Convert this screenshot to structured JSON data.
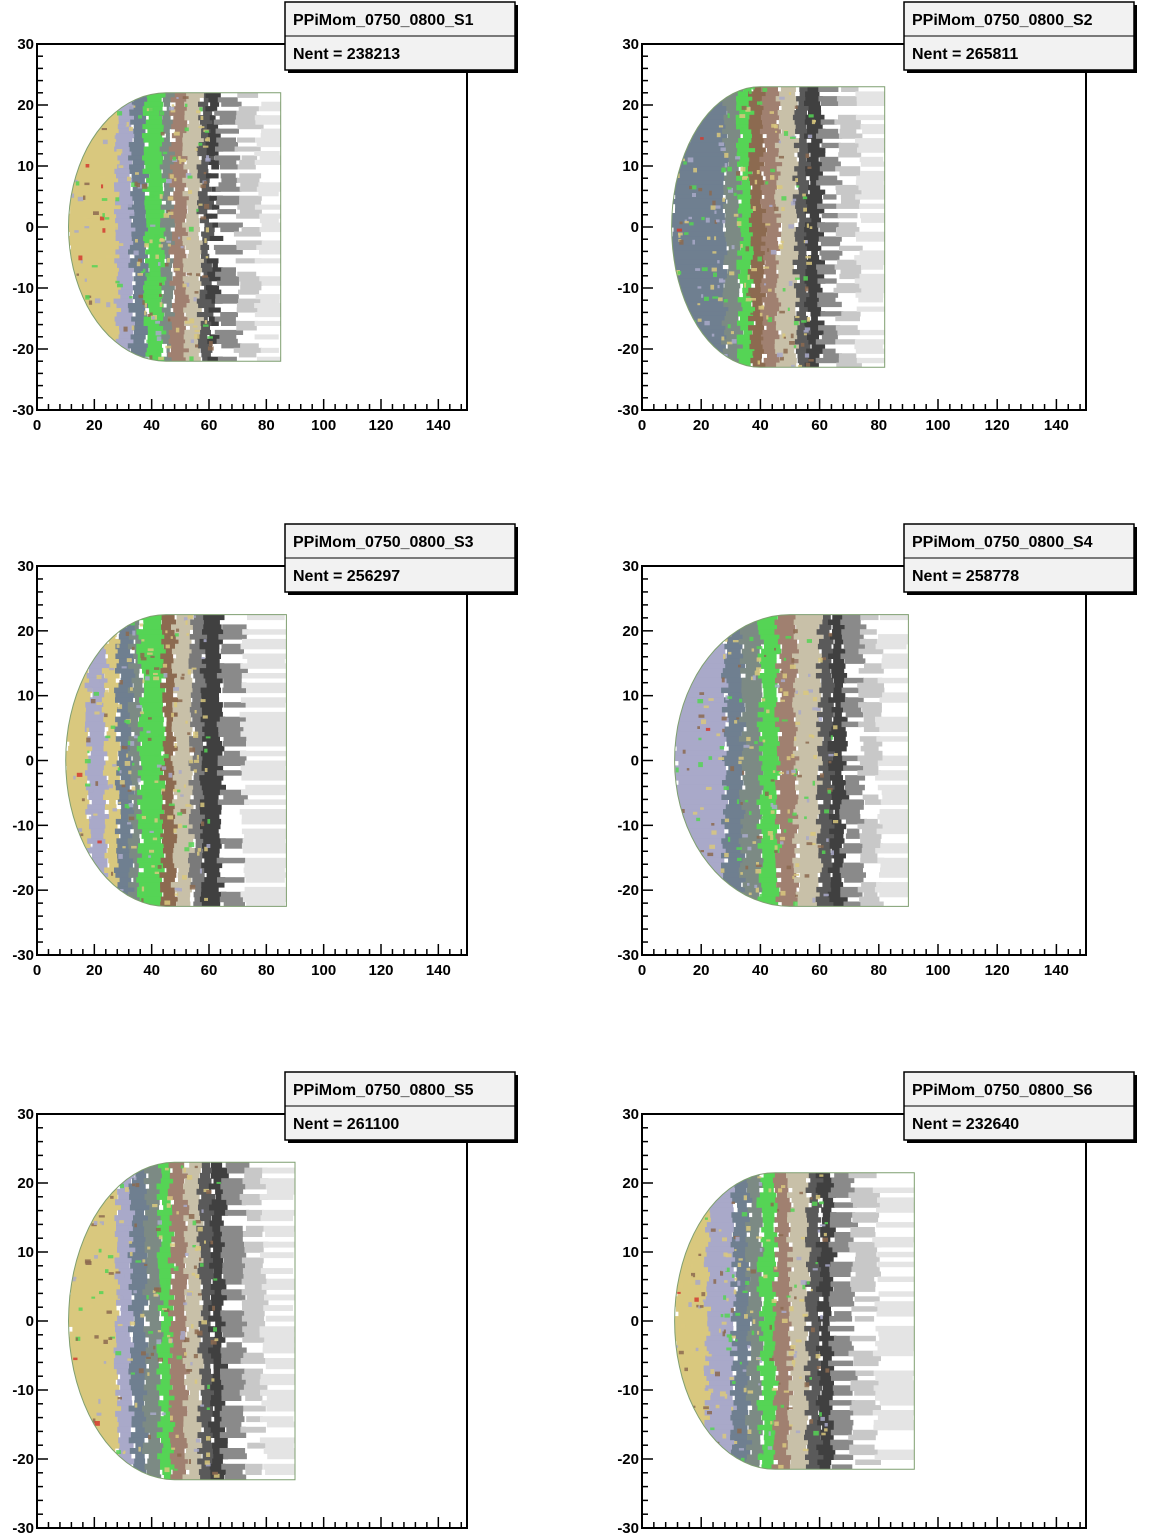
{
  "chart_data": [
    {
      "type": "heatmap",
      "title": "PPiMom_0750_0800_S1",
      "stats": "Nent = 238213",
      "xlim": [
        0,
        150
      ],
      "ylim": [
        -30,
        30
      ],
      "x_ticks": [
        "0",
        "20",
        "40",
        "60",
        "80",
        "100",
        "120",
        "140"
      ],
      "y_ticks": [
        "-30",
        "-20",
        "-10",
        "0",
        "10",
        "20",
        "30"
      ],
      "region": {
        "x_min": 11,
        "x_top": 45,
        "x_solid": 60,
        "x_tail": 85,
        "y_half": 22
      },
      "bands": [
        {
          "x0": 11,
          "x1": 30,
          "color": "#d9c87e"
        },
        {
          "x0": 28,
          "x1": 33,
          "color": "#a9a9c9"
        },
        {
          "x0": 33,
          "x1": 38,
          "color": "#6f7f90"
        },
        {
          "x0": 38,
          "x1": 44,
          "color": "#55d455"
        },
        {
          "x0": 44,
          "x1": 47,
          "color": "#7c8a84"
        },
        {
          "x0": 47,
          "x1": 52,
          "color": "#a08070"
        },
        {
          "x0": 52,
          "x1": 57,
          "color": "#c8c0a8"
        },
        {
          "x0": 57,
          "x1": 60,
          "color": "#5a5a5a"
        },
        {
          "x0": 60,
          "x1": 63,
          "color": "#404040"
        },
        {
          "x0": 63,
          "x1": 70,
          "color": "#8a8a8a"
        },
        {
          "x0": 70,
          "x1": 77,
          "color": "#c8c8c8"
        },
        {
          "x0": 77,
          "x1": 85,
          "color": "#e4e4e4"
        }
      ]
    },
    {
      "type": "heatmap",
      "title": "PPiMom_0750_0800_S2",
      "stats": "Nent = 265811",
      "xlim": [
        0,
        150
      ],
      "ylim": [
        -30,
        30
      ],
      "x_ticks": [
        "0",
        "20",
        "40",
        "60",
        "80",
        "100",
        "120",
        "140"
      ],
      "y_ticks": [
        "-30",
        "-20",
        "-10",
        "0",
        "10",
        "20",
        "30"
      ],
      "region": {
        "x_min": 10,
        "x_top": 40,
        "x_solid": 58,
        "x_tail": 82,
        "y_half": 23
      },
      "bands": [
        {
          "x0": 10,
          "x1": 28,
          "color": "#6f7f90"
        },
        {
          "x0": 28,
          "x1": 33,
          "color": "#7c8a84"
        },
        {
          "x0": 33,
          "x1": 37,
          "color": "#55d455"
        },
        {
          "x0": 37,
          "x1": 41,
          "color": "#8c6a50"
        },
        {
          "x0": 41,
          "x1": 46,
          "color": "#a08070"
        },
        {
          "x0": 46,
          "x1": 52,
          "color": "#c8c0a8"
        },
        {
          "x0": 52,
          "x1": 56,
          "color": "#5a5a5a"
        },
        {
          "x0": 56,
          "x1": 60,
          "color": "#404040"
        },
        {
          "x0": 60,
          "x1": 66,
          "color": "#8a8a8a"
        },
        {
          "x0": 66,
          "x1": 73,
          "color": "#c8c8c8"
        },
        {
          "x0": 73,
          "x1": 82,
          "color": "#e4e4e4"
        }
      ]
    },
    {
      "type": "heatmap",
      "title": "PPiMom_0750_0800_S3",
      "stats": "Nent = 256297",
      "xlim": [
        0,
        150
      ],
      "ylim": [
        -30,
        30
      ],
      "x_ticks": [
        "0",
        "20",
        "40",
        "60",
        "80",
        "100",
        "120",
        "140"
      ],
      "y_ticks": [
        "-30",
        "-20",
        "-10",
        "0",
        "10",
        "20",
        "30"
      ],
      "region": {
        "x_min": 10,
        "x_top": 45,
        "x_solid": 60,
        "x_tail": 87,
        "y_half": 22.5
      },
      "bands": [
        {
          "x0": 10,
          "x1": 18,
          "color": "#d9c87e"
        },
        {
          "x0": 18,
          "x1": 24,
          "color": "#a9a9c9"
        },
        {
          "x0": 24,
          "x1": 28,
          "color": "#d9c87e"
        },
        {
          "x0": 28,
          "x1": 33,
          "color": "#6f7f90"
        },
        {
          "x0": 33,
          "x1": 36,
          "color": "#7c8a84"
        },
        {
          "x0": 36,
          "x1": 44,
          "color": "#55d455"
        },
        {
          "x0": 44,
          "x1": 48,
          "color": "#8c6a50"
        },
        {
          "x0": 48,
          "x1": 54,
          "color": "#c8c0a8"
        },
        {
          "x0": 54,
          "x1": 58,
          "color": "#7a7a7a"
        },
        {
          "x0": 58,
          "x1": 64,
          "color": "#404040"
        },
        {
          "x0": 64,
          "x1": 72,
          "color": "#8a8a8a"
        },
        {
          "x0": 72,
          "x1": 87,
          "color": "#e4e4e4"
        }
      ]
    },
    {
      "type": "heatmap",
      "title": "PPiMom_0750_0800_S4",
      "stats": "Nent = 258778",
      "xlim": [
        0,
        150
      ],
      "ylim": [
        -30,
        30
      ],
      "x_ticks": [
        "0",
        "20",
        "40",
        "60",
        "80",
        "100",
        "120",
        "140"
      ],
      "y_ticks": [
        "-30",
        "-20",
        "-10",
        "0",
        "10",
        "20",
        "30"
      ],
      "region": {
        "x_min": 11,
        "x_top": 50,
        "x_solid": 65,
        "x_tail": 90,
        "y_half": 22.5
      },
      "bands": [
        {
          "x0": 11,
          "x1": 28,
          "color": "#a9a9c9"
        },
        {
          "x0": 28,
          "x1": 34,
          "color": "#6f7f90"
        },
        {
          "x0": 34,
          "x1": 40,
          "color": "#7c8a84"
        },
        {
          "x0": 40,
          "x1": 46,
          "color": "#55d455"
        },
        {
          "x0": 46,
          "x1": 52,
          "color": "#a08070"
        },
        {
          "x0": 52,
          "x1": 60,
          "color": "#c8c0a8"
        },
        {
          "x0": 60,
          "x1": 64,
          "color": "#5a5a5a"
        },
        {
          "x0": 64,
          "x1": 68,
          "color": "#404040"
        },
        {
          "x0": 68,
          "x1": 74,
          "color": "#8a8a8a"
        },
        {
          "x0": 74,
          "x1": 80,
          "color": "#c8c8c8"
        },
        {
          "x0": 80,
          "x1": 90,
          "color": "#e4e4e4"
        }
      ]
    },
    {
      "type": "heatmap",
      "title": "PPiMom_0750_0800_S5",
      "stats": "Nent = 261100",
      "xlim": [
        0,
        150
      ],
      "ylim": [
        -30,
        30
      ],
      "x_ticks": [
        "0",
        "20",
        "40",
        "60",
        "80",
        "100",
        "120",
        "140"
      ],
      "y_ticks": [
        "-30",
        "-20",
        "-10",
        "0",
        "10",
        "20",
        "30"
      ],
      "region": {
        "x_min": 11,
        "x_top": 48,
        "x_solid": 63,
        "x_tail": 90,
        "y_half": 23
      },
      "bands": [
        {
          "x0": 11,
          "x1": 28,
          "color": "#d9c87e"
        },
        {
          "x0": 28,
          "x1": 33,
          "color": "#a9a9c9"
        },
        {
          "x0": 33,
          "x1": 38,
          "color": "#6f7f90"
        },
        {
          "x0": 38,
          "x1": 43,
          "color": "#7c8a84"
        },
        {
          "x0": 43,
          "x1": 47,
          "color": "#55d455"
        },
        {
          "x0": 47,
          "x1": 52,
          "color": "#a08070"
        },
        {
          "x0": 52,
          "x1": 57,
          "color": "#c8c0a8"
        },
        {
          "x0": 57,
          "x1": 61,
          "color": "#5a5a5a"
        },
        {
          "x0": 61,
          "x1": 65,
          "color": "#404040"
        },
        {
          "x0": 65,
          "x1": 72,
          "color": "#8a8a8a"
        },
        {
          "x0": 72,
          "x1": 79,
          "color": "#c8c8c8"
        },
        {
          "x0": 79,
          "x1": 90,
          "color": "#e4e4e4"
        }
      ]
    },
    {
      "type": "heatmap",
      "title": "PPiMom_0750_0800_S6",
      "stats": "Nent = 232640",
      "xlim": [
        0,
        150
      ],
      "ylim": [
        -30,
        30
      ],
      "x_ticks": [
        "0",
        "20",
        "40",
        "60",
        "80",
        "100",
        "120",
        "140"
      ],
      "y_ticks": [
        "-30",
        "-20",
        "-10",
        "0",
        "10",
        "20",
        "30"
      ],
      "region": {
        "x_min": 11,
        "x_top": 45,
        "x_solid": 62,
        "x_tail": 92,
        "y_half": 21.5
      },
      "bands": [
        {
          "x0": 11,
          "x1": 26,
          "color": "#d9c87e"
        },
        {
          "x0": 22,
          "x1": 31,
          "color": "#a9a9c9"
        },
        {
          "x0": 31,
          "x1": 36,
          "color": "#6f7f90"
        },
        {
          "x0": 36,
          "x1": 40,
          "color": "#7c8a84"
        },
        {
          "x0": 40,
          "x1": 45,
          "color": "#55d455"
        },
        {
          "x0": 45,
          "x1": 50,
          "color": "#a08070"
        },
        {
          "x0": 50,
          "x1": 56,
          "color": "#c8c0a8"
        },
        {
          "x0": 56,
          "x1": 60,
          "color": "#5a5a5a"
        },
        {
          "x0": 60,
          "x1": 64,
          "color": "#404040"
        },
        {
          "x0": 64,
          "x1": 71,
          "color": "#8a8a8a"
        },
        {
          "x0": 71,
          "x1": 79,
          "color": "#c8c8c8"
        },
        {
          "x0": 79,
          "x1": 92,
          "color": "#e4e4e4"
        }
      ]
    }
  ]
}
